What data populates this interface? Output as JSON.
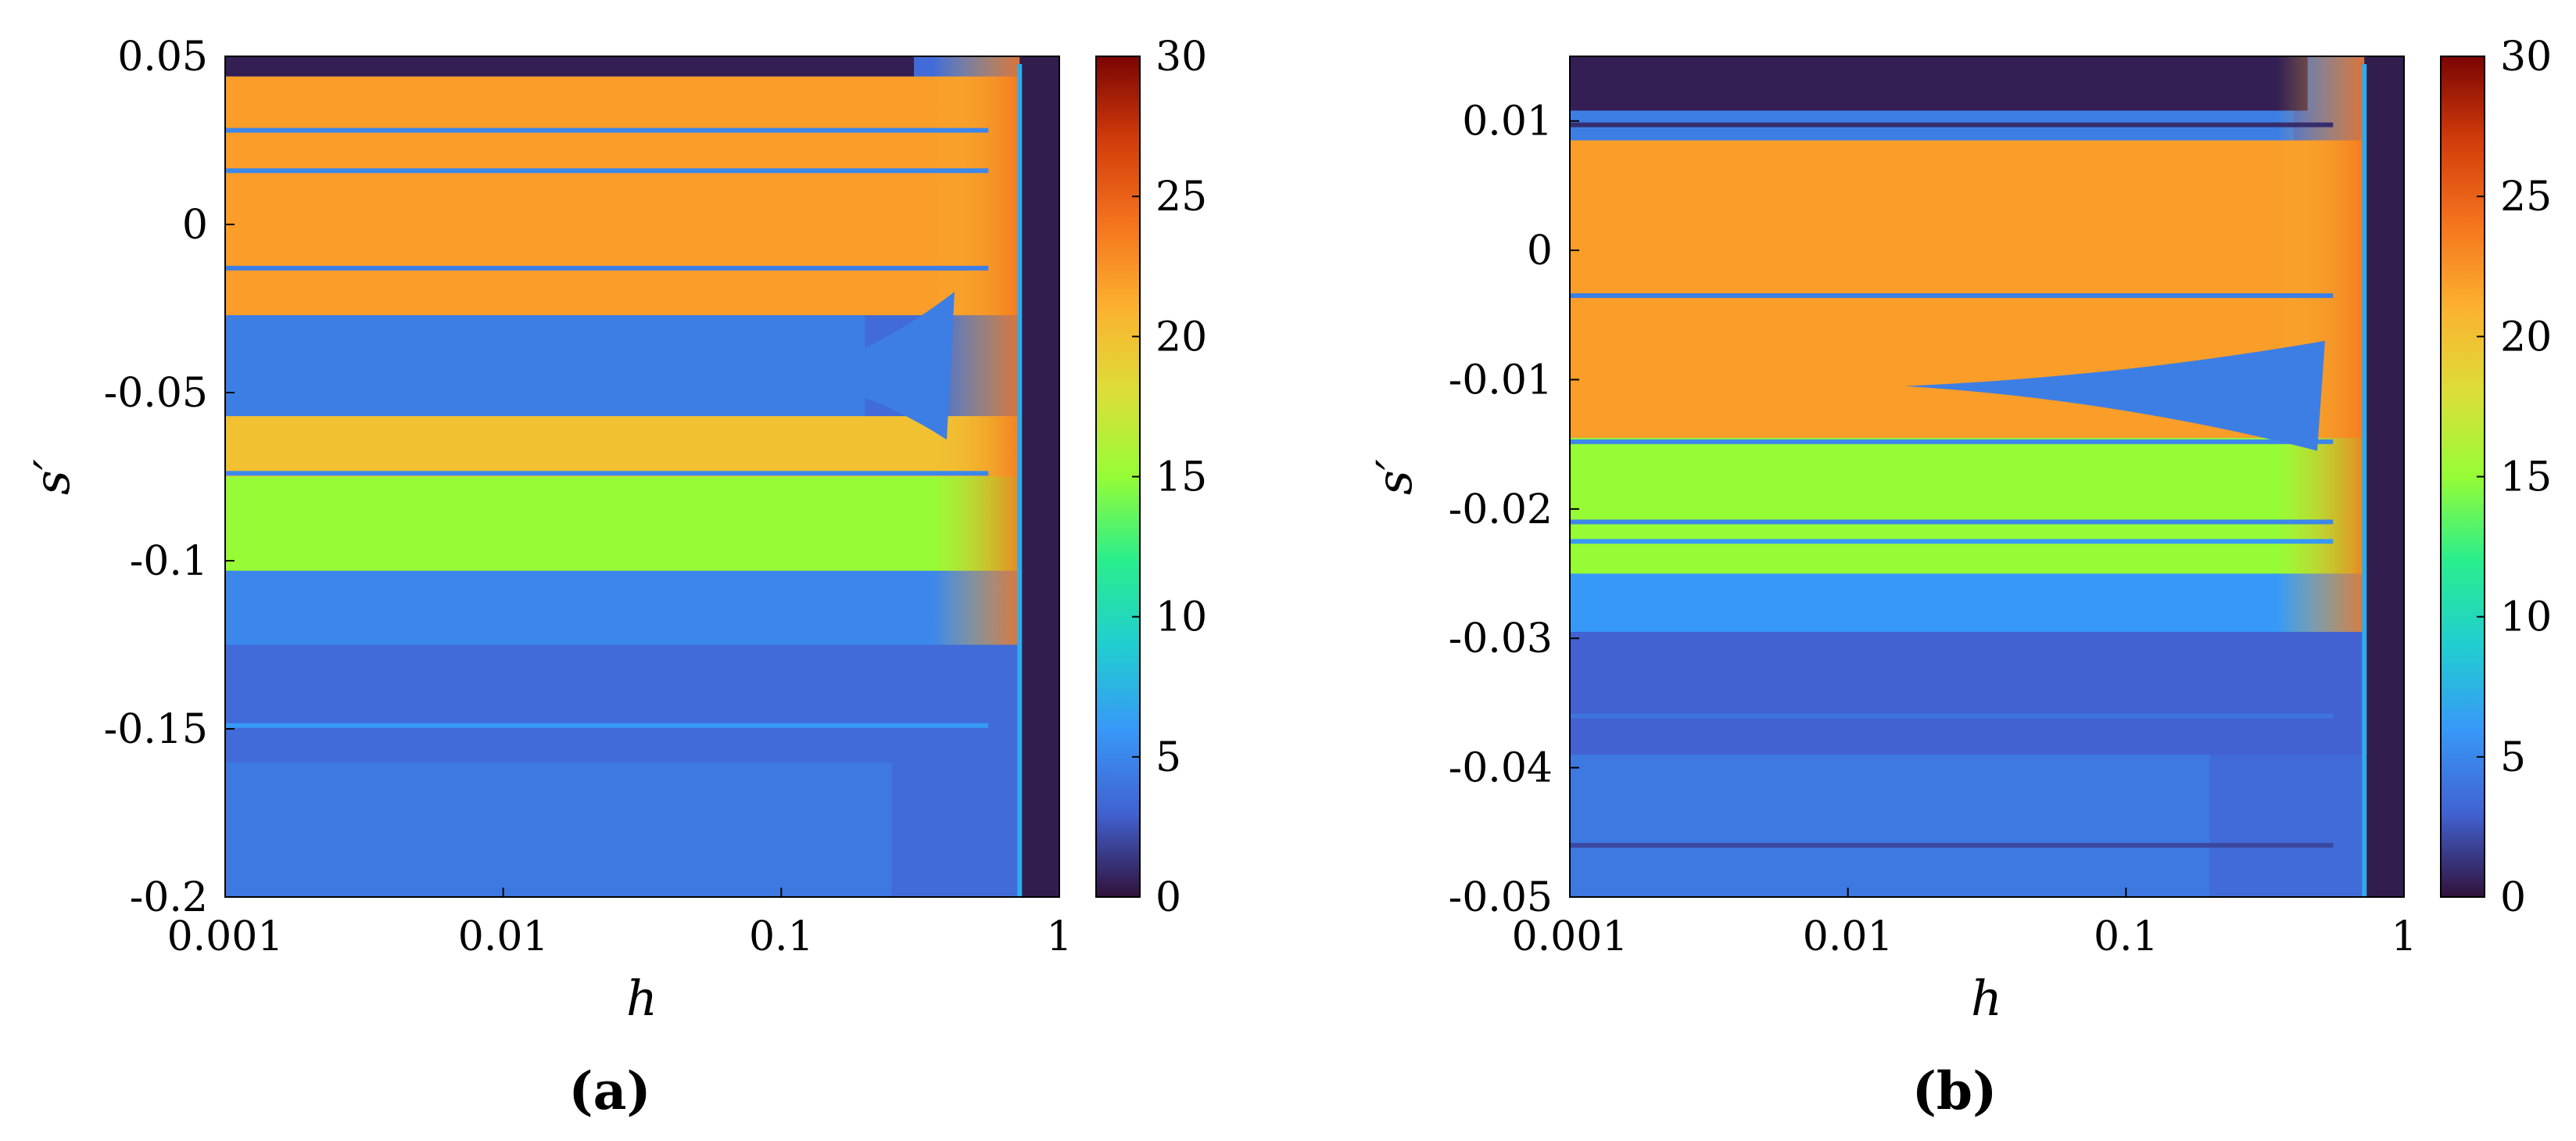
{
  "chart_data": [
    {
      "type": "heatmap",
      "panel_label": "(a)",
      "xlabel": "h",
      "ylabel": "s′",
      "x_scale": "log",
      "xlim": [
        0.001,
        1
      ],
      "ylim": [
        -0.2,
        0.05
      ],
      "x_ticks": [
        "0.001",
        "0.01",
        "0.1",
        "1"
      ],
      "y_ticks": [
        "0.05",
        "0",
        "-0.05",
        "-0.1",
        "-0.15",
        "-0.2"
      ],
      "y_tick_values": [
        0.05,
        0,
        -0.05,
        -0.1,
        -0.15,
        -0.2
      ],
      "colorbar": {
        "min": 0,
        "max": 30,
        "ticks": [
          "30",
          "25",
          "20",
          "15",
          "10",
          "5",
          "0"
        ],
        "tick_values": [
          30,
          25,
          20,
          15,
          10,
          5,
          0
        ]
      },
      "dark_region_h_from": 0.72,
      "bands": [
        {
          "s_top": 0.05,
          "s_bottom": 0.044,
          "value": 0.5,
          "h_to": 0.3
        },
        {
          "s_top": 0.044,
          "s_bottom": -0.027,
          "value": 22
        },
        {
          "s_top": -0.027,
          "s_bottom": -0.057,
          "value": 4.5,
          "h_to": 0.2
        },
        {
          "s_top": -0.057,
          "s_bottom": -0.075,
          "value": 20
        },
        {
          "s_top": -0.075,
          "s_bottom": -0.103,
          "value": 15
        },
        {
          "s_top": -0.103,
          "s_bottom": -0.125,
          "value": 5
        },
        {
          "s_top": -0.125,
          "s_bottom": -0.16,
          "value": 3.5
        },
        {
          "s_top": -0.16,
          "s_bottom": -0.2,
          "value": 4.2,
          "h_to": 0.25
        }
      ],
      "lines": [
        {
          "s": 0.028,
          "value": 5
        },
        {
          "s": 0.016,
          "value": 5
        },
        {
          "s": -0.013,
          "value": 4.5
        },
        {
          "s": -0.074,
          "value": 5
        },
        {
          "s": -0.149,
          "value": 6
        }
      ],
      "wedges": [
        {
          "h_tip": 0.1,
          "h_end": 0.42,
          "s_tip": -0.045,
          "s_top": -0.02,
          "s_bottom": -0.064,
          "value": 4.5
        }
      ]
    },
    {
      "type": "heatmap",
      "panel_label": "(b)",
      "xlabel": "h",
      "ylabel": "s′",
      "x_scale": "log",
      "xlim": [
        0.001,
        1
      ],
      "ylim": [
        -0.05,
        0.015
      ],
      "x_ticks": [
        "0.001",
        "0.01",
        "0.1",
        "1"
      ],
      "y_ticks": [
        "0.01",
        "0",
        "-0.01",
        "-0.02",
        "-0.03",
        "-0.04",
        "-0.05"
      ],
      "y_tick_values": [
        0.01,
        0,
        -0.01,
        -0.02,
        -0.03,
        -0.04,
        -0.05
      ],
      "colorbar": {
        "min": 0,
        "max": 30,
        "ticks": [
          "30",
          "25",
          "20",
          "15",
          "10",
          "5",
          "0"
        ],
        "tick_values": [
          30,
          25,
          20,
          15,
          10,
          5,
          0
        ]
      },
      "dark_region_h_from": 0.72,
      "bands": [
        {
          "s_top": 0.015,
          "s_bottom": 0.0108,
          "value": 0.5,
          "h_to": 0.45
        },
        {
          "s_top": 0.0108,
          "s_bottom": 0.0085,
          "value": 4.5,
          "h_to": 0.4
        },
        {
          "s_top": 0.0085,
          "s_bottom": -0.0145,
          "value": 22
        },
        {
          "s_top": -0.0145,
          "s_bottom": -0.025,
          "value": 15
        },
        {
          "s_top": -0.025,
          "s_bottom": -0.0295,
          "value": 6
        },
        {
          "s_top": -0.0295,
          "s_bottom": -0.039,
          "value": 3
        },
        {
          "s_top": -0.039,
          "s_bottom": -0.05,
          "value": 4.2,
          "h_to": 0.2
        }
      ],
      "lines": [
        {
          "s": 0.0097,
          "value": 1
        },
        {
          "s": -0.0035,
          "value": 4.5
        },
        {
          "s": -0.0148,
          "value": 5
        },
        {
          "s": -0.021,
          "value": 5
        },
        {
          "s": -0.0225,
          "value": 6
        },
        {
          "s": -0.036,
          "value": 4
        },
        {
          "s": -0.046,
          "value": 2
        }
      ],
      "wedges": [
        {
          "h_tip": 0.016,
          "h_end": 0.52,
          "s_tip": -0.0105,
          "s_top": -0.007,
          "s_bottom": -0.0155,
          "value": 4.5
        }
      ]
    }
  ]
}
